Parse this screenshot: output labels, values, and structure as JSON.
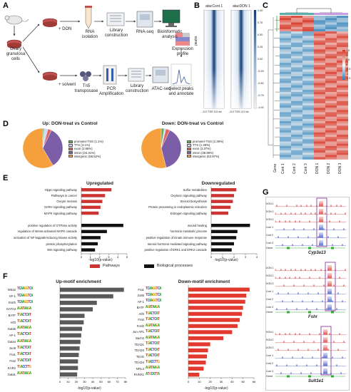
{
  "panels": {
    "A": "A",
    "B": "B",
    "C": "C",
    "D": "D",
    "E": "E",
    "F": "F",
    "G": "G"
  },
  "panelA": {
    "cells_label": "Ovary\ngranulosa\ncells",
    "don_label": "+ DON",
    "solvent_label": "+ solvent",
    "rna_isolation": "RNA\nisolation",
    "library_construction_1": "Library\nconstruction",
    "rna_seq": "RNA-seq",
    "bioinformatic_analysis": "Bioinformatic\nanalysis",
    "expression_profile": "Expression\nprofile",
    "tn5": "Tn5\ntransposase",
    "pcr": "PCR\nAmplification",
    "library_construction_2": "Library\nconstruction",
    "atac_seq": "ATAC-seq",
    "select_peaks": "Select peaks\nand annotate"
  },
  "panelB": {
    "col1": "atacCont 1",
    "col2": "atacDON 1",
    "ylabel": "peaks",
    "scale_ticks": [
      "1.00",
      "0.75",
      "0.50",
      "0.25",
      "0.00",
      "-0.25",
      "-0.50",
      "-0.75",
      "-1.00"
    ],
    "x_ticks": "-3.0 TSS 3.0 kb",
    "x_ticks2": "-3.0 TSS 3.0 kb"
  },
  "panelC": {
    "columns": [
      "Cont 1",
      "Cont 2",
      "Cont 3",
      "DON 1",
      "DON 2",
      "DON 3"
    ],
    "gene_label": "Gene",
    "legend_ticks": [
      "1.5",
      "1",
      "0.5",
      "0",
      "-0.5",
      "-1",
      "-1.5"
    ],
    "colors": {
      "high": "#d7301f",
      "mid": "#f7f7f7",
      "low": "#2c7fb8"
    }
  },
  "panelD": {
    "up_title": "Up: DON-treat vs Control",
    "down_title": "Down: DON-treat vs Control",
    "up_legend": [
      "promoter-TSS (1.1%)",
      "TTS (3.1%)",
      "exon (2.96%)",
      "intron (34.31%)",
      "intergenic (58.52%)"
    ],
    "down_legend": [
      "promoter-TSS (2.39%)",
      "TTS (1.39%)",
      "exon (3.37%)",
      "intron (38.89%)",
      "intergenic (53.97%)"
    ],
    "slice_colors": [
      "#6aa84f",
      "#c9daf8",
      "#e06666",
      "#7b5ea7",
      "#f6a03d"
    ]
  },
  "panelE": {
    "up_title": "Upregulated",
    "down_title": "Downregulated",
    "xlabel": "-log10(p-value)",
    "xlabel2": "-log10(p-value)",
    "legend_pathways": "Pathways",
    "legend_bio": "Biological processes",
    "pathway_color": "#cc3333",
    "bio_color": "#111111"
  },
  "panelF": {
    "up_title": "Up-motif enrichment",
    "down_title": "Down-motif enrichment",
    "xlabel": "-log10(p-value)",
    "xlabel2": "-log10(p-value)",
    "up_color": "#5a5a5a",
    "down_color": "#e33a2f"
  },
  "panelG": {
    "genes": [
      "Cyp3a13",
      "Fshr",
      "Sult1e1"
    ],
    "track_labels": [
      "DON 1",
      "DON 2",
      "DON 3",
      "Cont 1",
      "Cont 2",
      "Cont 3"
    ],
    "gene_label": "Gene",
    "don_color": "#e34a4a",
    "cont_color": "#5566cc",
    "highlight_color": "#8e3aa3"
  },
  "chart_data": [
    {
      "type": "bar",
      "id": "E-up",
      "title": "Upregulated",
      "xlabel": "-log10(p-value)",
      "categories": [
        "Hippo signaling pathway",
        "Pathways in cancer",
        "Oocyte meiosis",
        "GnRH signaling pathway",
        "MAPK signaling pathway",
        "positive regulation of GTPase activity",
        "regulation of stress-activated MAPK cascade",
        "activation of NF-kappaB-inducing kinase activity",
        "protein phosphorylation",
        "Wnt signaling pathway"
      ],
      "values": [
        3.3,
        2.6,
        2.3,
        2.1,
        1.9,
        4.6,
        2.8,
        2.1,
        1.8,
        1.5
      ],
      "group": [
        "pathway",
        "pathway",
        "pathway",
        "pathway",
        "pathway",
        "bio",
        "bio",
        "bio",
        "bio",
        "bio"
      ],
      "xticks": [
        0,
        1,
        2,
        3,
        4,
        5
      ],
      "xlim": [
        0,
        5
      ]
    },
    {
      "type": "bar",
      "id": "E-down",
      "title": "Downregulated",
      "xlabel": "-log10(p-value)",
      "categories": [
        "Sulfur metabolism",
        "Oxytocin signaling pathway",
        "Steroid biosynthesis",
        "Protein processing in endoplasmic reticulum",
        "Estrogen signaling pathway",
        "wound healing",
        "hormone metabolic process",
        "positive regulation of innate immune response",
        "steroid hormone mediated signaling pathway",
        "positive regulation of ERK1 and ERK2 cascade"
      ],
      "values": [
        2.2,
        2.0,
        1.9,
        1.7,
        1.5,
        3.4,
        2.3,
        2.2,
        2.0,
        1.8
      ],
      "group": [
        "pathway",
        "pathway",
        "pathway",
        "pathway",
        "pathway",
        "bio",
        "bio",
        "bio",
        "bio",
        "bio"
      ],
      "xticks": [
        0,
        1,
        2,
        3,
        4
      ],
      "xlim": [
        0,
        4
      ]
    },
    {
      "type": "bar",
      "id": "F-up",
      "title": "Up-motif enrichment",
      "xlabel": "-log10(p-value)",
      "categories": [
        "Nr5a2",
        "SF-1",
        "Esrrb",
        "GATA3",
        "BATF",
        "Atf3",
        "Gata6",
        "AP-1",
        "Gata4",
        "Jun8",
        "Fra1",
        "Fra2",
        "EAR2",
        "Gata1"
      ],
      "values": [
        78,
        65,
        45,
        40,
        30,
        29,
        27,
        26,
        25,
        24,
        23,
        22,
        22,
        21
      ],
      "xticks": [
        0,
        10,
        20,
        30,
        40,
        50,
        60,
        70,
        80
      ],
      "xlim": [
        0,
        80
      ]
    },
    {
      "type": "bar",
      "id": "F-down",
      "title": "Down-motif enrichment",
      "xlabel": "-log10(p-value)",
      "categories": [
        "Fra1",
        "JunB",
        "AP-1",
        "BATF",
        "Atf3",
        "Fra2",
        "Fosl2",
        "Jun-AP1",
        "Bach2",
        "TEAD1",
        "TEAD3",
        "TEAD",
        "TEAD4",
        "NFIL3",
        "RUNX1"
      ],
      "values": [
        56,
        53,
        52,
        50,
        49,
        47,
        45,
        40,
        32,
        20,
        18,
        17,
        16,
        14,
        10
      ],
      "xticks": [
        0,
        10,
        20,
        30,
        40,
        50,
        60
      ],
      "xlim": [
        0,
        60
      ]
    },
    {
      "type": "pie",
      "id": "D-up",
      "title": "Up: DON-treat vs Control",
      "labels": [
        "promoter-TSS",
        "TTS",
        "exon",
        "intron",
        "intergenic"
      ],
      "values": [
        1.1,
        3.1,
        2.96,
        34.31,
        58.52
      ]
    },
    {
      "type": "pie",
      "id": "D-down",
      "title": "Down: DON-treat vs Control",
      "labels": [
        "promoter-TSS",
        "TTS",
        "exon",
        "intron",
        "intergenic"
      ],
      "values": [
        2.39,
        1.39,
        3.37,
        38.89,
        53.97
      ]
    }
  ]
}
